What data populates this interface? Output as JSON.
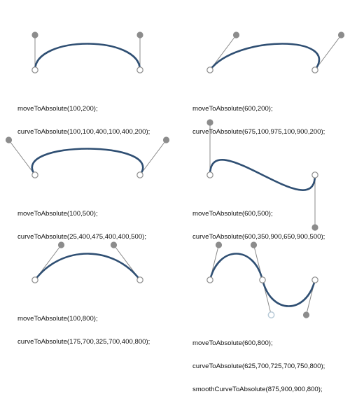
{
  "colors": {
    "curve": "#2f4f73",
    "handle_line": "#888888",
    "handle_dot": "#8c8c8c",
    "anchor_stroke": "#8c8c8c",
    "smooth_ctrl_stroke": "#b9cbd8"
  },
  "panels": [
    {
      "id": "p1",
      "lines": [
        "moveToAbsolute(100,200);",
        "curveToAbsolute(100,100,400,100,400,200);"
      ]
    },
    {
      "id": "p2",
      "lines": [
        "moveToAbsolute(600,200);",
        "curveToAbsolute(675,100,975,100,900,200);"
      ]
    },
    {
      "id": "p3",
      "lines": [
        "moveToAbsolute(100,500);",
        "curveToAbsolute(25,400,475,400,400,500);"
      ]
    },
    {
      "id": "p4",
      "lines": [
        "moveToAbsolute(600,500);",
        "curveToAbsolute(600,350,900,650,900,500);"
      ]
    },
    {
      "id": "p5",
      "lines": [
        "moveToAbsolute(100,800);",
        "curveToAbsolute(175,700,325,700,400,800);"
      ]
    },
    {
      "id": "p6",
      "lines": [
        "moveToAbsolute(600,800);",
        "curveToAbsolute(625,700,725,700,750,800);",
        "smoothCurveToAbsolute(875,900,900,800);"
      ]
    }
  ]
}
